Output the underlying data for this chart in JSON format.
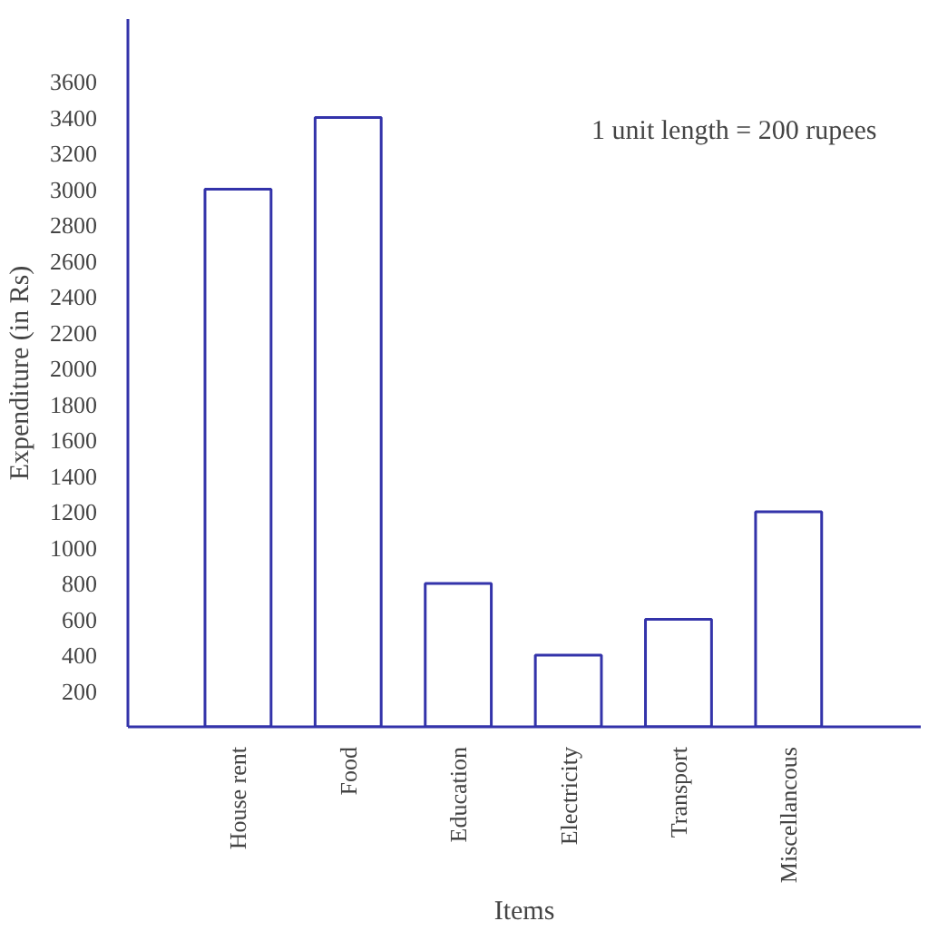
{
  "chart_data": {
    "type": "bar",
    "xlabel": "Items",
    "ylabel": "Expenditure (in Rs)",
    "categories": [
      "House rent",
      "Food",
      "Education",
      "Electricity",
      "Transport",
      "Miscellancous"
    ],
    "values": [
      3000,
      3400,
      800,
      400,
      600,
      1200
    ],
    "color": "#3333aa",
    "ylim": [
      0,
      3950
    ],
    "yticks": [
      200,
      400,
      600,
      800,
      1000,
      1200,
      1400,
      1600,
      1800,
      2000,
      2200,
      2400,
      2600,
      2800,
      3000,
      3200,
      3400,
      3600
    ],
    "grid": false,
    "annotations": [
      "1 unit length = 200 rupees"
    ]
  }
}
